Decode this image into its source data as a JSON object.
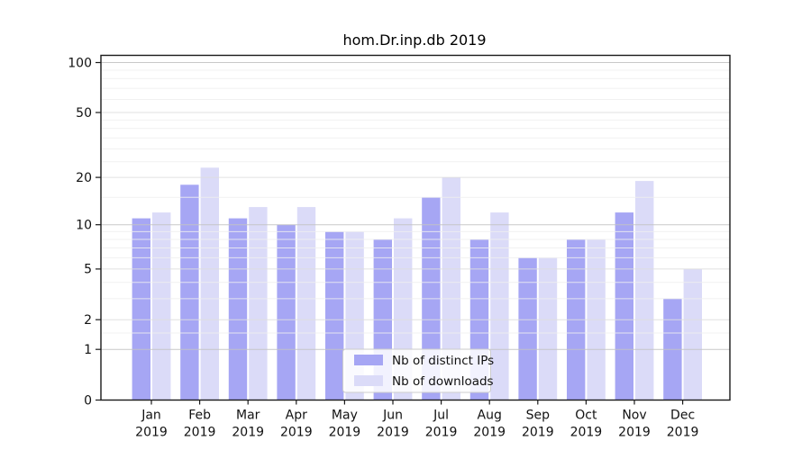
{
  "chart_data": {
    "type": "bar",
    "title": "hom.Dr.inp.db 2019",
    "categories": [
      "Jan 2019",
      "Feb 2019",
      "Mar 2019",
      "Apr 2019",
      "May 2019",
      "Jun 2019",
      "Jul 2019",
      "Aug 2019",
      "Sep 2019",
      "Oct 2019",
      "Nov 2019",
      "Dec 2019"
    ],
    "series": [
      {
        "name": "Nb of distinct IPs",
        "color": "#a6a6f4",
        "values": [
          11,
          18,
          11,
          10,
          9,
          8,
          15,
          8,
          6,
          8,
          12,
          3
        ]
      },
      {
        "name": "Nb of downloads",
        "color": "#dbdbf8",
        "values": [
          12,
          23,
          13,
          13,
          9,
          11,
          20,
          12,
          6,
          8,
          19,
          5
        ]
      }
    ],
    "y_axis": {
      "scale": "log1p",
      "ticks": [
        100,
        50,
        20,
        10,
        5,
        2,
        1,
        0
      ],
      "minor_ticks": [
        1.5,
        3,
        4,
        6,
        7,
        8,
        9,
        15,
        25,
        30,
        35,
        40,
        45,
        60,
        70,
        80,
        90
      ],
      "ylim": [
        0,
        110
      ]
    },
    "xlabel": "",
    "ylabel": "",
    "legend": {
      "position": "lower center",
      "entries": [
        "Nb of distinct IPs",
        "Nb of downloads"
      ]
    },
    "grid": true
  },
  "colors": {
    "background": "#ffffff",
    "spine": "#1a1a1a",
    "text": "#111111",
    "grid_decade": "#c3c3c3",
    "grid_labeled": "#dedede",
    "grid_minor": "#efefef",
    "legend_border": "#cccccc",
    "legend_bg_alpha": "rgba(255,255,255,0.85)"
  }
}
